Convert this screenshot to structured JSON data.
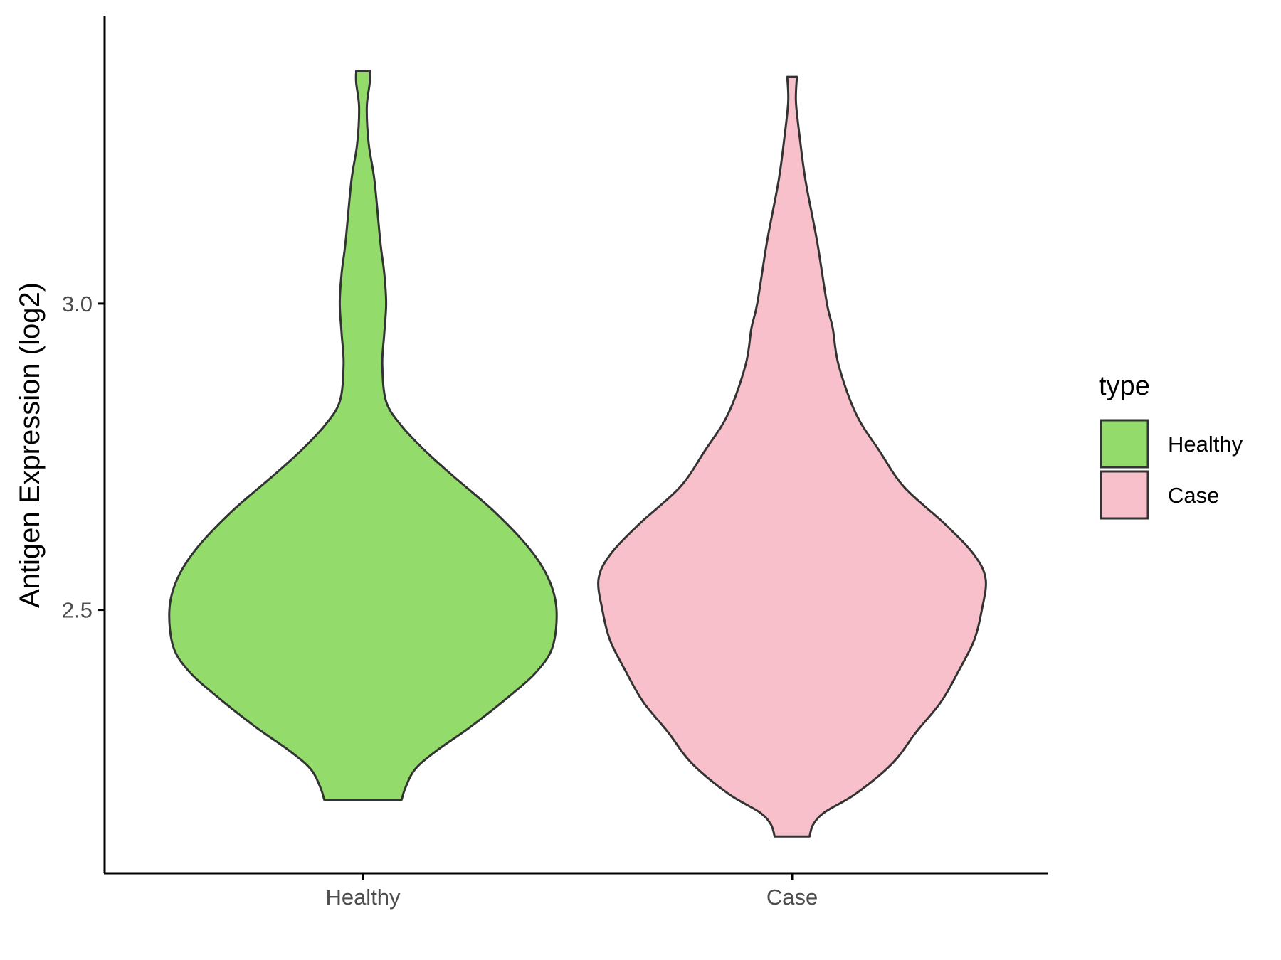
{
  "chart_data": {
    "type": "violin",
    "title": "",
    "xlabel": "",
    "ylabel": "Antigen Expression (log2)",
    "categories": [
      "Healthy",
      "Case"
    ],
    "ylim": [
      2.07,
      3.47
    ],
    "yticks": [
      2.5,
      3.0
    ],
    "ytick_labels": [
      "2.5",
      "3.0"
    ],
    "grid": false,
    "legend": {
      "title": "type",
      "position": "right",
      "entries": [
        "Healthy",
        "Case"
      ]
    },
    "colors": {
      "Healthy": "#93dc6b",
      "Case": "#f7c0cb",
      "outline": "#333333",
      "axis": "#000000"
    },
    "series": [
      {
        "name": "Healthy",
        "min": 2.19,
        "max": 3.38,
        "density_profile": [
          [
            2.19,
            0.2
          ],
          [
            2.21,
            0.22
          ],
          [
            2.24,
            0.27
          ],
          [
            2.27,
            0.38
          ],
          [
            2.31,
            0.56
          ],
          [
            2.36,
            0.76
          ],
          [
            2.4,
            0.9
          ],
          [
            2.44,
            0.98
          ],
          [
            2.5,
            1.0
          ],
          [
            2.55,
            0.96
          ],
          [
            2.6,
            0.86
          ],
          [
            2.66,
            0.68
          ],
          [
            2.72,
            0.46
          ],
          [
            2.76,
            0.32
          ],
          [
            2.8,
            0.2
          ],
          [
            2.84,
            0.12
          ],
          [
            2.9,
            0.1
          ],
          [
            2.95,
            0.11
          ],
          [
            3.0,
            0.12
          ],
          [
            3.05,
            0.11
          ],
          [
            3.1,
            0.09
          ],
          [
            3.2,
            0.06
          ],
          [
            3.26,
            0.03
          ],
          [
            3.32,
            0.02
          ],
          [
            3.36,
            0.035
          ],
          [
            3.38,
            0.035
          ]
        ]
      },
      {
        "name": "Case",
        "min": 2.13,
        "max": 3.37,
        "density_profile": [
          [
            2.13,
            0.09
          ],
          [
            2.15,
            0.11
          ],
          [
            2.17,
            0.17
          ],
          [
            2.2,
            0.33
          ],
          [
            2.25,
            0.52
          ],
          [
            2.3,
            0.64
          ],
          [
            2.35,
            0.77
          ],
          [
            2.4,
            0.86
          ],
          [
            2.45,
            0.94
          ],
          [
            2.5,
            0.98
          ],
          [
            2.55,
            1.0
          ],
          [
            2.59,
            0.94
          ],
          [
            2.64,
            0.79
          ],
          [
            2.7,
            0.58
          ],
          [
            2.76,
            0.45
          ],
          [
            2.82,
            0.33
          ],
          [
            2.9,
            0.24
          ],
          [
            2.96,
            0.21
          ],
          [
            3.0,
            0.18
          ],
          [
            3.1,
            0.13
          ],
          [
            3.2,
            0.07
          ],
          [
            3.27,
            0.04
          ],
          [
            3.33,
            0.02
          ],
          [
            3.37,
            0.025
          ]
        ]
      }
    ]
  }
}
